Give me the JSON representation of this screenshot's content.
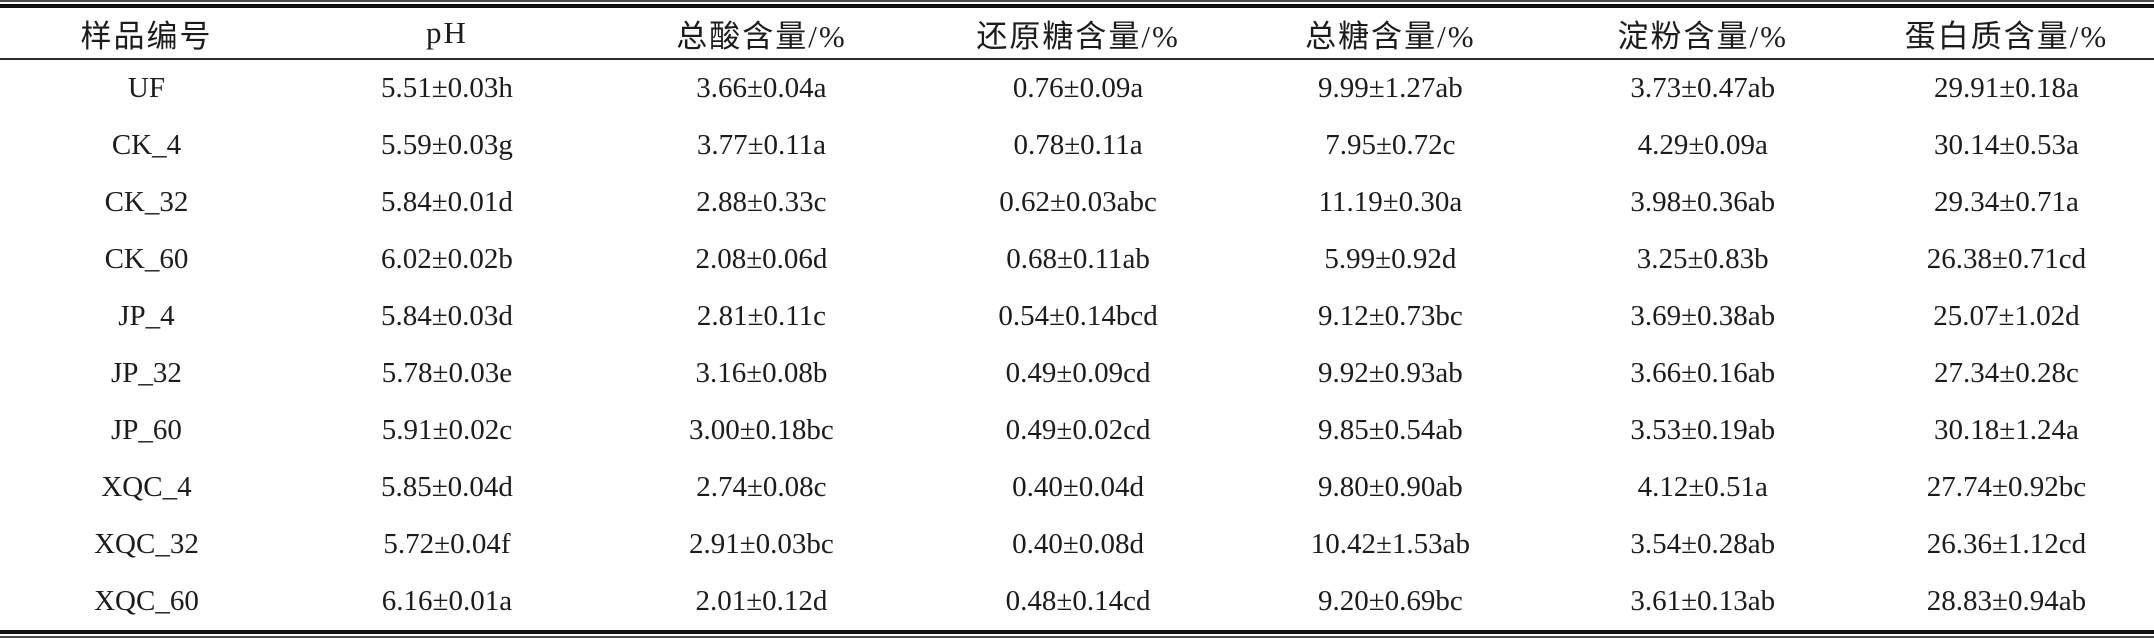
{
  "page": {
    "background_color": "#ffffff",
    "text_color": "#1c1c1c",
    "rule_color": "#101010"
  },
  "table": {
    "columns": [
      "样品编号",
      "pH",
      "总酸含量/%",
      "还原糖含量/%",
      "总糖含量/%",
      "淀粉含量/%",
      "蛋白质含量/%"
    ],
    "rows": [
      [
        "UF",
        "5.51±0.03h",
        "3.66±0.04a",
        "0.76±0.09a",
        "9.99±1.27ab",
        "3.73±0.47ab",
        "29.91±0.18a"
      ],
      [
        "CK_4",
        "5.59±0.03g",
        "3.77±0.11a",
        "0.78±0.11a",
        "7.95±0.72c",
        "4.29±0.09a",
        "30.14±0.53a"
      ],
      [
        "CK_32",
        "5.84±0.01d",
        "2.88±0.33c",
        "0.62±0.03abc",
        "11.19±0.30a",
        "3.98±0.36ab",
        "29.34±0.71a"
      ],
      [
        "CK_60",
        "6.02±0.02b",
        "2.08±0.06d",
        "0.68±0.11ab",
        "5.99±0.92d",
        "3.25±0.83b",
        "26.38±0.71cd"
      ],
      [
        "JP_4",
        "5.84±0.03d",
        "2.81±0.11c",
        "0.54±0.14bcd",
        "9.12±0.73bc",
        "3.69±0.38ab",
        "25.07±1.02d"
      ],
      [
        "JP_32",
        "5.78±0.03e",
        "3.16±0.08b",
        "0.49±0.09cd",
        "9.92±0.93ab",
        "3.66±0.16ab",
        "27.34±0.28c"
      ],
      [
        "JP_60",
        "5.91±0.02c",
        "3.00±0.18bc",
        "0.49±0.02cd",
        "9.85±0.54ab",
        "3.53±0.19ab",
        "30.18±1.24a"
      ],
      [
        "XQC_4",
        "5.85±0.04d",
        "2.74±0.08c",
        "0.40±0.04d",
        "9.80±0.90ab",
        "4.12±0.51a",
        "27.74±0.92bc"
      ],
      [
        "XQC_32",
        "5.72±0.04f",
        "2.91±0.03bc",
        "0.40±0.08d",
        "10.42±1.53ab",
        "3.54±0.28ab",
        "26.36±1.12cd"
      ],
      [
        "XQC_60",
        "6.16±0.01a",
        "2.01±0.12d",
        "0.48±0.14cd",
        "9.20±0.69bc",
        "3.61±0.13ab",
        "28.83±0.94ab"
      ]
    ],
    "column_width_percents": [
      13.6,
      14.3,
      14.9,
      14.5,
      14.5,
      14.5,
      13.7
    ]
  }
}
